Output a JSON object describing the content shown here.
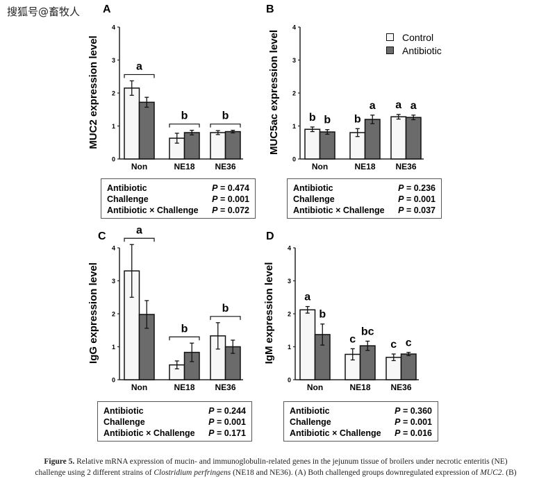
{
  "watermark": "搜狐号@畜牧人",
  "legend": {
    "placement": "top-right of panel B",
    "items": [
      {
        "name": "Control",
        "color": "#f7f7f7"
      },
      {
        "name": "Antibiotic",
        "color": "#6b6b6b"
      }
    ]
  },
  "chart_data": [
    {
      "type": "bar",
      "panel": "A",
      "ylabel": "MUC2 expression level",
      "ylim": [
        0,
        4
      ],
      "yticks": [
        "0",
        "1",
        "2",
        "3",
        "4"
      ],
      "categories": [
        "Non",
        "NE18",
        "NE36"
      ],
      "series": [
        {
          "name": "Control",
          "values": [
            2.15,
            0.63,
            0.8
          ],
          "errors": [
            0.22,
            0.15,
            0.06
          ]
        },
        {
          "name": "Antibiotic",
          "values": [
            1.72,
            0.8,
            0.83
          ],
          "errors": [
            0.15,
            0.07,
            0.04
          ]
        }
      ],
      "letters": [
        {
          "text": "a",
          "group": 0,
          "bar": "both"
        },
        {
          "text": "b",
          "group": 1,
          "bar": "both"
        },
        {
          "text": "b",
          "group": 2,
          "bar": "both"
        }
      ],
      "stats": [
        {
          "label": "Antibiotic",
          "p": "0.474"
        },
        {
          "label": "Challenge",
          "p": "0.001"
        },
        {
          "label": "Antibiotic × Challenge",
          "p": "0.072"
        }
      ]
    },
    {
      "type": "bar",
      "panel": "B",
      "ylabel": "MUC5ac expression level",
      "ylim": [
        0,
        4
      ],
      "yticks": [
        "0",
        "1",
        "2",
        "3",
        "4"
      ],
      "categories": [
        "Non",
        "NE18",
        "NE36"
      ],
      "series": [
        {
          "name": "Control",
          "values": [
            0.9,
            0.8,
            1.28
          ],
          "errors": [
            0.07,
            0.12,
            0.07
          ]
        },
        {
          "name": "Antibiotic",
          "values": [
            0.82,
            1.2,
            1.26
          ],
          "errors": [
            0.07,
            0.13,
            0.07
          ]
        }
      ],
      "letters": [
        {
          "text": "b",
          "group": 0,
          "bar": 0
        },
        {
          "text": "b",
          "group": 0,
          "bar": 1
        },
        {
          "text": "b",
          "group": 1,
          "bar": 0
        },
        {
          "text": "a",
          "group": 1,
          "bar": 1
        },
        {
          "text": "a",
          "group": 2,
          "bar": 0
        },
        {
          "text": "a",
          "group": 2,
          "bar": 1
        }
      ],
      "stats": [
        {
          "label": "Antibiotic",
          "p": "0.236"
        },
        {
          "label": "Challenge",
          "p": "0.001"
        },
        {
          "label": "Antibiotic × Challenge",
          "p": "0.037"
        }
      ]
    },
    {
      "type": "bar",
      "panel": "C",
      "ylabel": "IgG expression level",
      "ylim": [
        0,
        4
      ],
      "yticks": [
        "0",
        "1",
        "2",
        "3",
        "4"
      ],
      "categories": [
        "Non",
        "NE18",
        "NE36"
      ],
      "series": [
        {
          "name": "Control",
          "values": [
            3.3,
            0.45,
            1.33
          ],
          "errors": [
            0.8,
            0.12,
            0.4
          ]
        },
        {
          "name": "Antibiotic",
          "values": [
            1.98,
            0.83,
            1.0
          ],
          "errors": [
            0.42,
            0.28,
            0.2
          ]
        }
      ],
      "letters": [
        {
          "text": "a",
          "group": 0,
          "bar": "both"
        },
        {
          "text": "b",
          "group": 1,
          "bar": "both"
        },
        {
          "text": "b",
          "group": 2,
          "bar": "both"
        }
      ],
      "stats": [
        {
          "label": "Antibiotic",
          "p": "0.244"
        },
        {
          "label": "Challenge",
          "p": "0.001"
        },
        {
          "label": "Antibiotic × Challenge",
          "p": "0.171"
        }
      ]
    },
    {
      "type": "bar",
      "panel": "D",
      "ylabel": "IgM expression level",
      "ylim": [
        0,
        4
      ],
      "yticks": [
        "0",
        "1",
        "2",
        "3",
        "4"
      ],
      "categories": [
        "Non",
        "NE18",
        "NE36"
      ],
      "series": [
        {
          "name": "Control",
          "values": [
            2.12,
            0.77,
            0.68
          ],
          "errors": [
            0.1,
            0.17,
            0.1
          ]
        },
        {
          "name": "Antibiotic",
          "values": [
            1.37,
            1.03,
            0.78
          ],
          "errors": [
            0.32,
            0.14,
            0.05
          ]
        }
      ],
      "letters": [
        {
          "text": "a",
          "group": 0,
          "bar": 0
        },
        {
          "text": "b",
          "group": 0,
          "bar": 1
        },
        {
          "text": "c",
          "group": 1,
          "bar": 0
        },
        {
          "text": "bc",
          "group": 1,
          "bar": 1
        },
        {
          "text": "c",
          "group": 2,
          "bar": 0
        },
        {
          "text": "c",
          "group": 2,
          "bar": 1
        }
      ],
      "stats": [
        {
          "label": "Antibiotic",
          "p": "0.360"
        },
        {
          "label": "Challenge",
          "p": "0.001"
        },
        {
          "label": "Antibiotic × Challenge",
          "p": "0.016"
        }
      ]
    }
  ],
  "stats_p_prefix": "P = ",
  "caption": {
    "label": "Figure 5.",
    "line1": "Relative mRNA expression of mucin- and immunoglobulin-related genes in the jejunum tissue of broilers under necrotic enteritis (NE)",
    "line2a": "challenge using 2 different strains of ",
    "species": "Clostridium perfringens",
    "line2b": " (NE18 and NE36). (A) Both challenged groups downregulated expression of ",
    "gene": "MUC2",
    "line2c": ". (B)"
  }
}
